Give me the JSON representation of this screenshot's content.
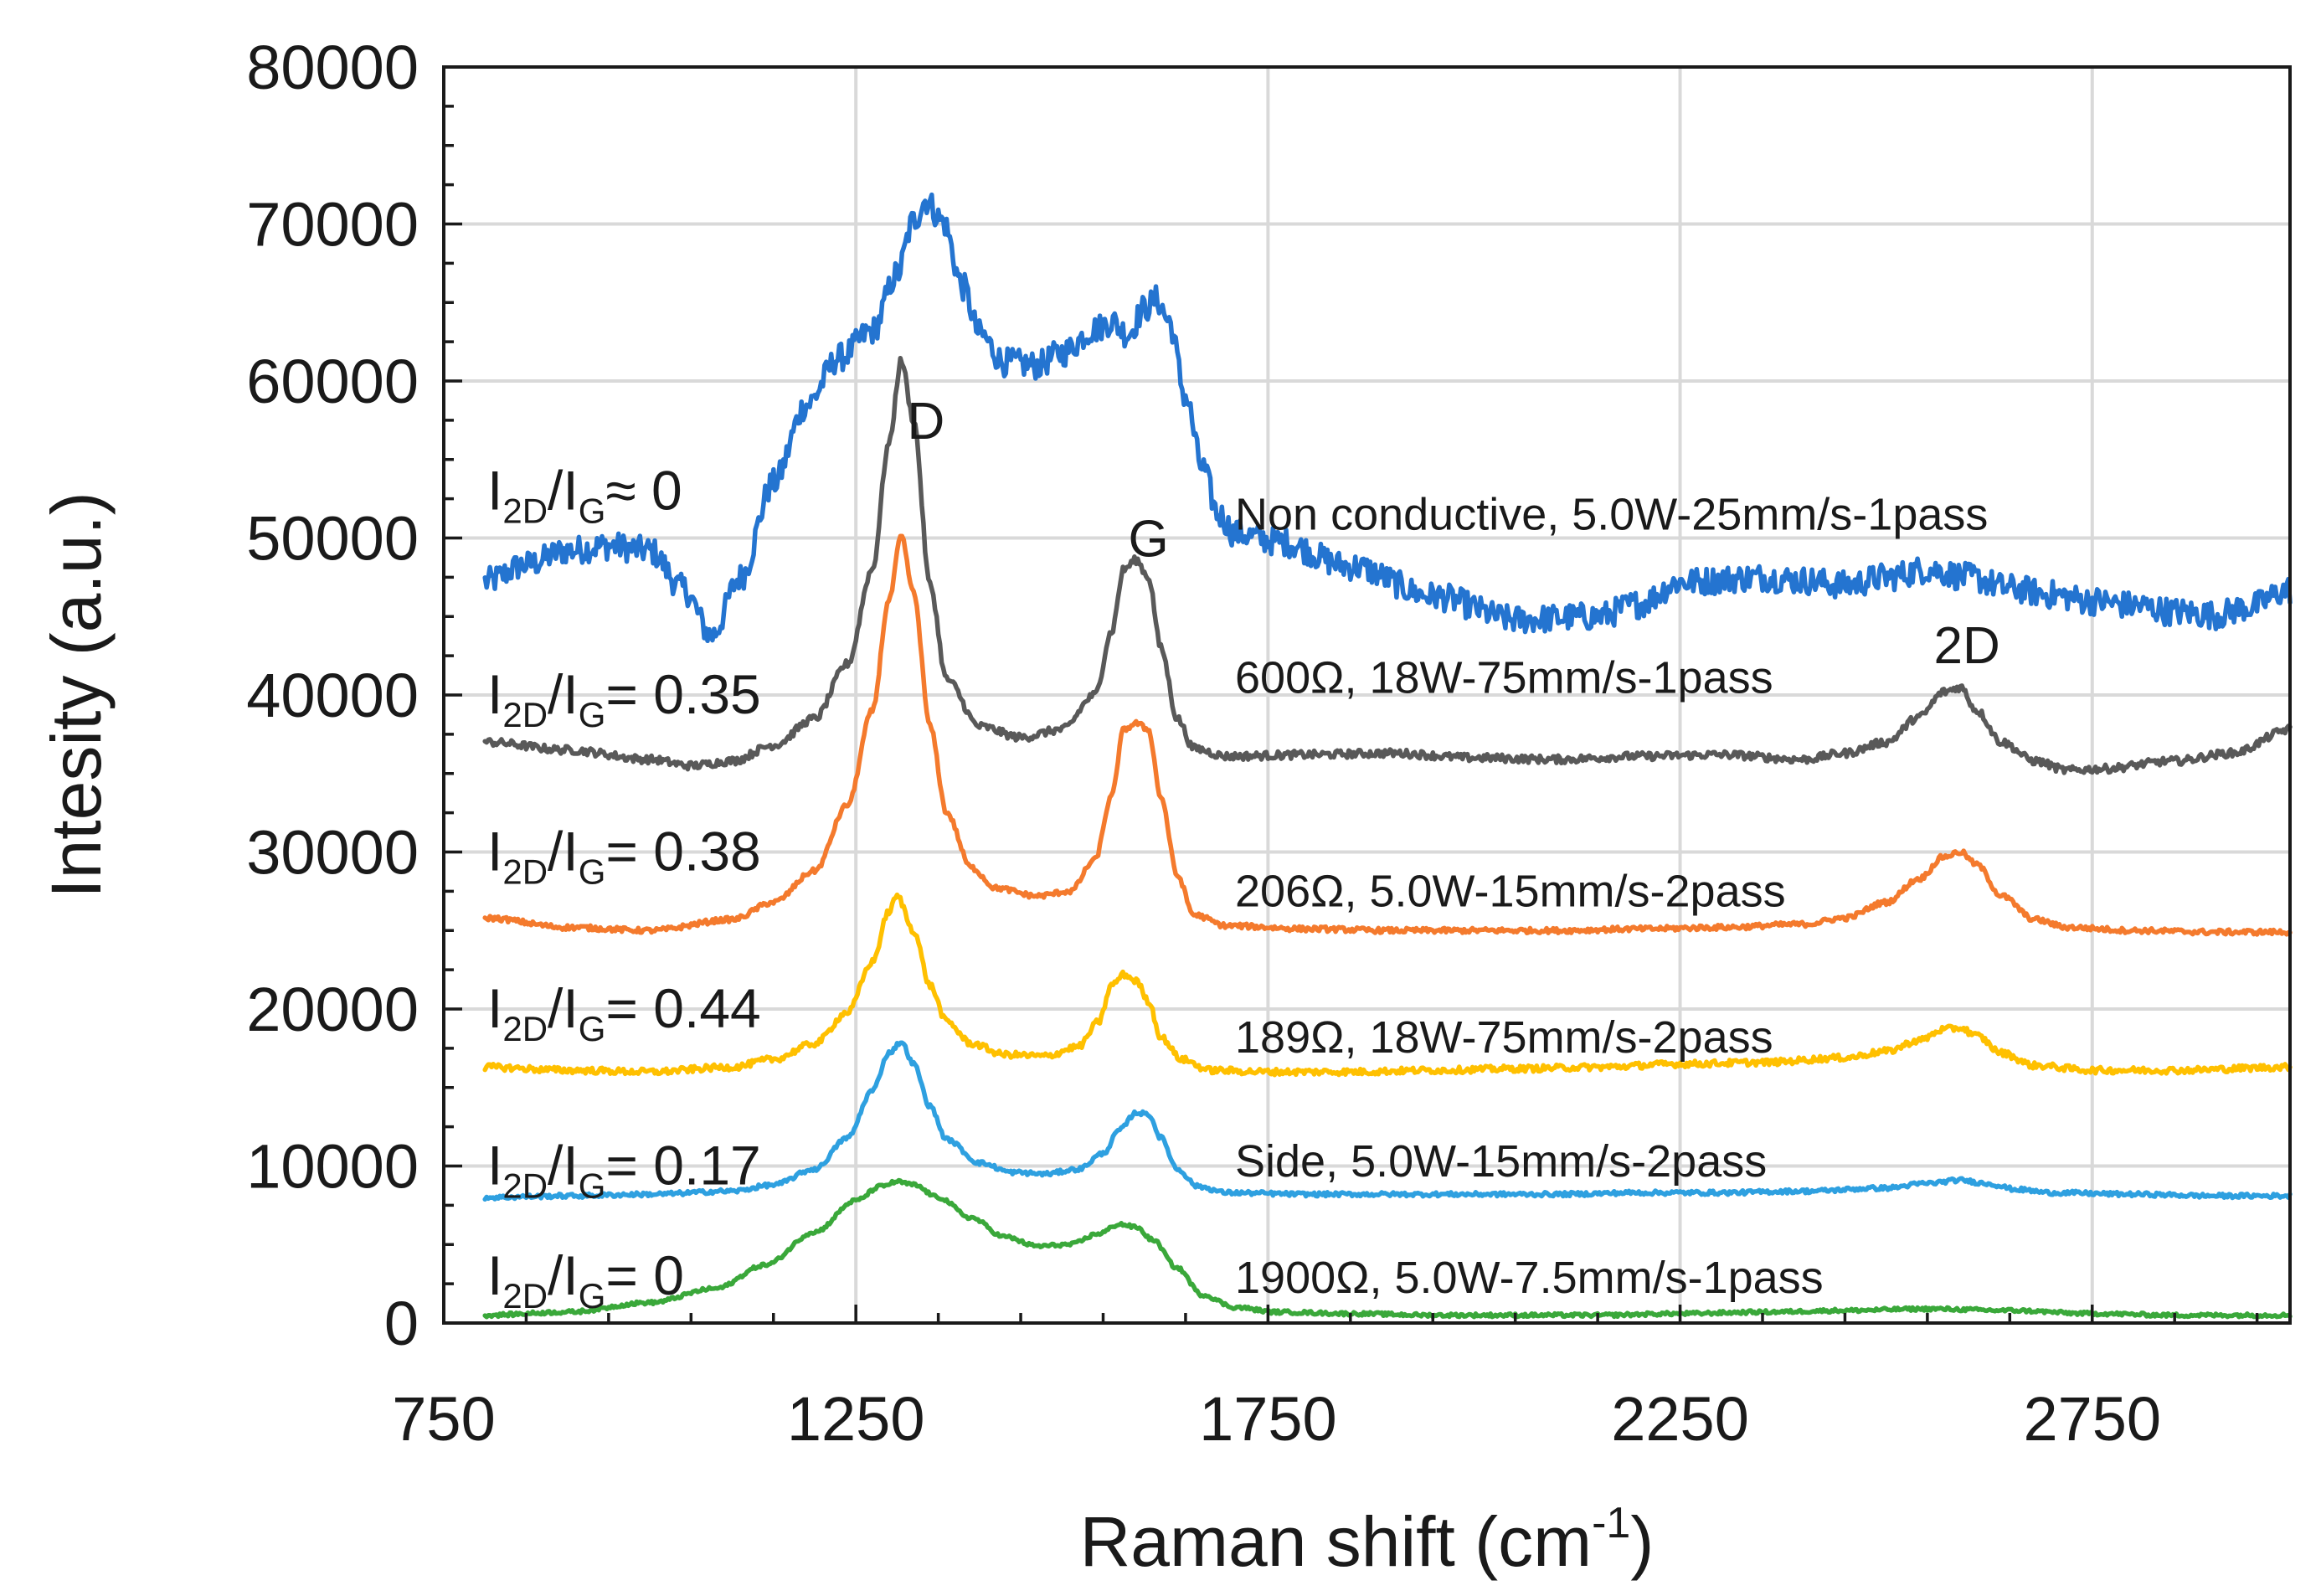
{
  "chart_data": {
    "type": "line",
    "title": "",
    "xlabel": "Raman shift (cm",
    "xlabel_sup": "-1",
    "xlabel_close": ")",
    "ylabel": "Intesity (a.u.)",
    "xlim": [
      750,
      2990
    ],
    "ylim": [
      0,
      80000
    ],
    "x_ticks": [
      750,
      1250,
      1750,
      2250,
      2750
    ],
    "x_tick_labels": [
      "750",
      "1250",
      "1750",
      "2250",
      "2750"
    ],
    "x_minor_step": 100,
    "y_ticks": [
      0,
      10000,
      20000,
      30000,
      40000,
      50000,
      60000,
      70000,
      80000
    ],
    "y_tick_labels": [
      "0",
      "10000",
      "20000",
      "30000",
      "40000",
      "50000",
      "60000",
      "70000",
      "80000"
    ],
    "y_minor_step": 2500,
    "grid": true,
    "legend": "none",
    "series": [
      {
        "name": "Non conductive, 5.0W-25mm/s-1pass",
        "ratio_value": "≈ 0",
        "color": "#2474d0",
        "noise": 900,
        "points": [
          [
            800,
            47200
          ],
          [
            850,
            48300
          ],
          [
            900,
            49200
          ],
          [
            950,
            49500
          ],
          [
            1000,
            49200
          ],
          [
            1040,
            46800
          ],
          [
            1075,
            43800
          ],
          [
            1110,
            47500
          ],
          [
            1150,
            53500
          ],
          [
            1190,
            58500
          ],
          [
            1230,
            61500
          ],
          [
            1270,
            63200
          ],
          [
            1300,
            66800
          ],
          [
            1320,
            70200
          ],
          [
            1335,
            71500
          ],
          [
            1355,
            70200
          ],
          [
            1380,
            66000
          ],
          [
            1400,
            63000
          ],
          [
            1430,
            61200
          ],
          [
            1470,
            61000
          ],
          [
            1500,
            61800
          ],
          [
            1540,
            63300
          ],
          [
            1560,
            63800
          ],
          [
            1580,
            63000
          ],
          [
            1600,
            64600
          ],
          [
            1615,
            65200
          ],
          [
            1630,
            63800
          ],
          [
            1650,
            59000
          ],
          [
            1670,
            54500
          ],
          [
            1690,
            51500
          ],
          [
            1710,
            50300
          ],
          [
            1760,
            49800
          ],
          [
            1850,
            48200
          ],
          [
            1950,
            46300
          ],
          [
            2050,
            44800
          ],
          [
            2150,
            45000
          ],
          [
            2200,
            45800
          ],
          [
            2250,
            47200
          ],
          [
            2350,
            47500
          ],
          [
            2400,
            47300
          ],
          [
            2450,
            47000
          ],
          [
            2500,
            47500
          ],
          [
            2550,
            48000
          ],
          [
            2600,
            47500
          ],
          [
            2650,
            46800
          ],
          [
            2700,
            46400
          ],
          [
            2750,
            46000
          ],
          [
            2800,
            45700
          ],
          [
            2850,
            45300
          ],
          [
            2900,
            45100
          ],
          [
            2940,
            45600
          ],
          [
            2990,
            46700
          ]
        ]
      },
      {
        "name": "600Ω, 18W-75mm/s-1pass",
        "ratio_value": "= 0.35",
        "color": "#595959",
        "noise": 250,
        "points": [
          [
            800,
            37000
          ],
          [
            900,
            36500
          ],
          [
            1000,
            35900
          ],
          [
            1050,
            35500
          ],
          [
            1100,
            35800
          ],
          [
            1150,
            36800
          ],
          [
            1200,
            38500
          ],
          [
            1240,
            42000
          ],
          [
            1270,
            48000
          ],
          [
            1290,
            56000
          ],
          [
            1305,
            61300
          ],
          [
            1320,
            57500
          ],
          [
            1340,
            47000
          ],
          [
            1360,
            41000
          ],
          [
            1400,
            38000
          ],
          [
            1450,
            37300
          ],
          [
            1500,
            37800
          ],
          [
            1540,
            40000
          ],
          [
            1560,
            44000
          ],
          [
            1575,
            48000
          ],
          [
            1590,
            48600
          ],
          [
            1605,
            47500
          ],
          [
            1620,
            43000
          ],
          [
            1640,
            38500
          ],
          [
            1660,
            36600
          ],
          [
            1700,
            36100
          ],
          [
            1800,
            36200
          ],
          [
            1900,
            36300
          ],
          [
            2000,
            36000
          ],
          [
            2100,
            35900
          ],
          [
            2200,
            36100
          ],
          [
            2300,
            36200
          ],
          [
            2400,
            35900
          ],
          [
            2450,
            36300
          ],
          [
            2500,
            37000
          ],
          [
            2540,
            38600
          ],
          [
            2570,
            40200
          ],
          [
            2590,
            40500
          ],
          [
            2610,
            39000
          ],
          [
            2640,
            37000
          ],
          [
            2680,
            35800
          ],
          [
            2720,
            35200
          ],
          [
            2760,
            35300
          ],
          [
            2850,
            35800
          ],
          [
            2920,
            36300
          ],
          [
            2990,
            37800
          ]
        ]
      },
      {
        "name": "206Ω, 5.0W-15mm/s-2pass",
        "ratio_value": "= 0.38",
        "color": "#f47a2d",
        "noise": 160,
        "points": [
          [
            800,
            25800
          ],
          [
            900,
            25200
          ],
          [
            1000,
            25000
          ],
          [
            1100,
            25700
          ],
          [
            1150,
            26800
          ],
          [
            1200,
            28800
          ],
          [
            1240,
            33000
          ],
          [
            1270,
            39000
          ],
          [
            1290,
            46000
          ],
          [
            1305,
            50100
          ],
          [
            1320,
            46500
          ],
          [
            1340,
            38000
          ],
          [
            1360,
            32500
          ],
          [
            1390,
            29000
          ],
          [
            1420,
            27700
          ],
          [
            1470,
            27200
          ],
          [
            1510,
            27500
          ],
          [
            1540,
            29500
          ],
          [
            1560,
            33500
          ],
          [
            1575,
            37800
          ],
          [
            1590,
            38200
          ],
          [
            1605,
            37800
          ],
          [
            1620,
            33500
          ],
          [
            1640,
            28500
          ],
          [
            1660,
            26000
          ],
          [
            1700,
            25300
          ],
          [
            1800,
            25100
          ],
          [
            1900,
            25000
          ],
          [
            2000,
            25000
          ],
          [
            2100,
            25000
          ],
          [
            2200,
            25100
          ],
          [
            2300,
            25200
          ],
          [
            2400,
            25400
          ],
          [
            2450,
            25800
          ],
          [
            2500,
            26800
          ],
          [
            2540,
            28300
          ],
          [
            2570,
            29700
          ],
          [
            2590,
            30000
          ],
          [
            2610,
            29200
          ],
          [
            2640,
            27200
          ],
          [
            2680,
            25700
          ],
          [
            2720,
            25200
          ],
          [
            2800,
            25000
          ],
          [
            2900,
            24900
          ],
          [
            2990,
            24900
          ]
        ]
      },
      {
        "name": "189Ω, 18W-75mm/s-2pass",
        "ratio_value": "= 0.44",
        "color": "#ffc000",
        "noise": 200,
        "points": [
          [
            800,
            16300
          ],
          [
            900,
            16100
          ],
          [
            1000,
            16000
          ],
          [
            1100,
            16300
          ],
          [
            1150,
            16800
          ],
          [
            1200,
            17800
          ],
          [
            1240,
            19800
          ],
          [
            1270,
            23000
          ],
          [
            1290,
            26200
          ],
          [
            1300,
            27200
          ],
          [
            1320,
            25000
          ],
          [
            1340,
            21500
          ],
          [
            1360,
            19200
          ],
          [
            1390,
            17800
          ],
          [
            1430,
            17100
          ],
          [
            1480,
            17000
          ],
          [
            1520,
            17600
          ],
          [
            1545,
            19200
          ],
          [
            1560,
            21500
          ],
          [
            1575,
            22200
          ],
          [
            1590,
            21800
          ],
          [
            1605,
            20500
          ],
          [
            1620,
            18200
          ],
          [
            1645,
            16800
          ],
          [
            1680,
            16100
          ],
          [
            1750,
            16000
          ],
          [
            1850,
            16000
          ],
          [
            1950,
            16100
          ],
          [
            2050,
            16200
          ],
          [
            2150,
            16300
          ],
          [
            2250,
            16500
          ],
          [
            2350,
            16600
          ],
          [
            2450,
            16900
          ],
          [
            2500,
            17300
          ],
          [
            2540,
            18000
          ],
          [
            2570,
            18700
          ],
          [
            2590,
            18800
          ],
          [
            2610,
            18300
          ],
          [
            2640,
            17200
          ],
          [
            2680,
            16400
          ],
          [
            2750,
            16100
          ],
          [
            2850,
            16100
          ],
          [
            2990,
            16300
          ]
        ]
      },
      {
        "name": "Side, 5.0W-15mm/s-2pass",
        "ratio_value": "= 0.17",
        "color": "#2ea0e0",
        "noise": 130,
        "points": [
          [
            800,
            8000
          ],
          [
            900,
            8100
          ],
          [
            1000,
            8200
          ],
          [
            1100,
            8400
          ],
          [
            1150,
            8800
          ],
          [
            1200,
            9800
          ],
          [
            1240,
            11800
          ],
          [
            1270,
            14800
          ],
          [
            1290,
            17200
          ],
          [
            1305,
            17900
          ],
          [
            1320,
            16500
          ],
          [
            1340,
            13800
          ],
          [
            1360,
            11700
          ],
          [
            1400,
            10200
          ],
          [
            1440,
            9600
          ],
          [
            1480,
            9500
          ],
          [
            1520,
            9800
          ],
          [
            1550,
            10800
          ],
          [
            1570,
            12300
          ],
          [
            1590,
            13400
          ],
          [
            1605,
            13300
          ],
          [
            1620,
            11800
          ],
          [
            1640,
            9800
          ],
          [
            1665,
            8700
          ],
          [
            1700,
            8300
          ],
          [
            1800,
            8200
          ],
          [
            1900,
            8200
          ],
          [
            2000,
            8200
          ],
          [
            2100,
            8200
          ],
          [
            2200,
            8300
          ],
          [
            2300,
            8300
          ],
          [
            2400,
            8400
          ],
          [
            2500,
            8600
          ],
          [
            2550,
            8900
          ],
          [
            2590,
            9100
          ],
          [
            2620,
            8900
          ],
          [
            2660,
            8500
          ],
          [
            2700,
            8300
          ],
          [
            2800,
            8200
          ],
          [
            2900,
            8100
          ],
          [
            2990,
            8100
          ]
        ]
      },
      {
        "name": "1900Ω, 5.0W-7.5mm/s-1pass",
        "ratio_value": "= 0",
        "color": "#3aa83a",
        "noise": 110,
        "points": [
          [
            800,
            500
          ],
          [
            900,
            700
          ],
          [
            1000,
            1300
          ],
          [
            1080,
            2200
          ],
          [
            1140,
            3700
          ],
          [
            1200,
            5800
          ],
          [
            1250,
            7800
          ],
          [
            1280,
            8700
          ],
          [
            1300,
            9000
          ],
          [
            1320,
            8800
          ],
          [
            1350,
            8000
          ],
          [
            1390,
            6700
          ],
          [
            1430,
            5500
          ],
          [
            1470,
            4900
          ],
          [
            1510,
            5000
          ],
          [
            1545,
            5700
          ],
          [
            1570,
            6300
          ],
          [
            1590,
            6100
          ],
          [
            1610,
            5300
          ],
          [
            1640,
            3500
          ],
          [
            1670,
            1800
          ],
          [
            1710,
            1000
          ],
          [
            1760,
            700
          ],
          [
            1850,
            600
          ],
          [
            1950,
            500
          ],
          [
            2050,
            500
          ],
          [
            2150,
            500
          ],
          [
            2250,
            600
          ],
          [
            2350,
            700
          ],
          [
            2450,
            800
          ],
          [
            2550,
            900
          ],
          [
            2650,
            800
          ],
          [
            2750,
            600
          ],
          [
            2850,
            500
          ],
          [
            2990,
            500
          ]
        ]
      }
    ],
    "peak_labels": [
      "D",
      "G",
      "2D"
    ],
    "ratio_label_main": "I",
    "ratio_sub_num": "2D",
    "ratio_slash": "/I",
    "ratio_sub_den": "G"
  }
}
